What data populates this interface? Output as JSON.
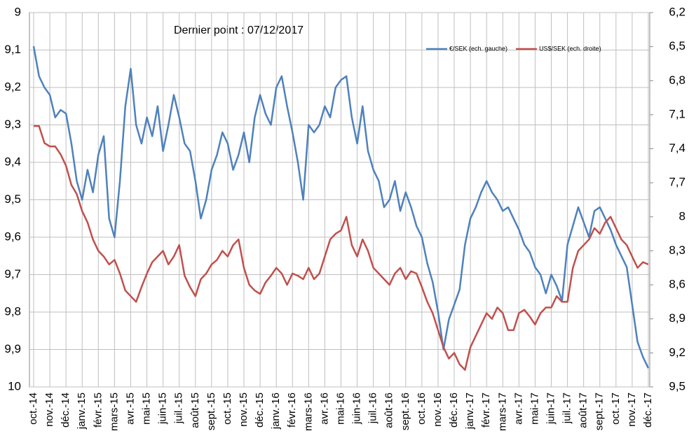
{
  "chart_data": {
    "type": "line",
    "annotation": "Dernier point : 07/12/2017",
    "categories": [
      "oct.-14",
      null,
      null,
      "nov.-14",
      null,
      null,
      "déc.-14",
      null,
      null,
      "janv.-15",
      null,
      null,
      "févr.-15",
      null,
      null,
      "mars-15",
      null,
      null,
      "avr.-15",
      null,
      null,
      "mai-15",
      null,
      null,
      "juin-15",
      null,
      null,
      "juil.-15",
      null,
      null,
      "août-15",
      null,
      null,
      "sept.-15",
      null,
      null,
      "oct.-15",
      null,
      null,
      "nov.-15",
      null,
      null,
      "déc.-15",
      null,
      null,
      "janv.-16",
      null,
      null,
      "févr.-16",
      null,
      null,
      "mars-16",
      null,
      null,
      "avr.-16",
      null,
      null,
      "mai-16",
      null,
      null,
      "juin-16",
      null,
      null,
      "juil.-16",
      null,
      null,
      "août-16",
      null,
      null,
      "sept.-16",
      null,
      null,
      "oct.-16",
      null,
      null,
      "nov.-16",
      null,
      null,
      "déc.-16",
      null,
      null,
      "janv.-17",
      null,
      null,
      "févr.-17",
      null,
      null,
      "mars-17",
      null,
      null,
      "avr.-17",
      null,
      null,
      "mai-17",
      null,
      null,
      "juin-17",
      null,
      null,
      "juil.-17",
      null,
      null,
      "août-17",
      null,
      null,
      "sept.-17",
      null,
      null,
      "oct.-17",
      null,
      null,
      "nov.-17",
      null,
      null,
      "déc.-17"
    ],
    "series": [
      {
        "name": "€/SEK (ech. gauche)",
        "color": "#4f81bd",
        "axis": "y",
        "values": [
          9.09,
          9.17,
          9.2,
          9.22,
          9.28,
          9.26,
          9.27,
          9.35,
          9.45,
          9.5,
          9.42,
          9.48,
          9.38,
          9.33,
          9.55,
          9.6,
          9.45,
          9.25,
          9.15,
          9.3,
          9.35,
          9.28,
          9.33,
          9.25,
          9.37,
          9.3,
          9.22,
          9.28,
          9.35,
          9.37,
          9.45,
          9.55,
          9.5,
          9.42,
          9.38,
          9.32,
          9.35,
          9.42,
          9.38,
          9.32,
          9.4,
          9.28,
          9.22,
          9.27,
          9.3,
          9.2,
          9.17,
          9.25,
          9.32,
          9.4,
          9.5,
          9.3,
          9.32,
          9.3,
          9.25,
          9.28,
          9.2,
          9.18,
          9.17,
          9.28,
          9.35,
          9.25,
          9.37,
          9.42,
          9.45,
          9.52,
          9.5,
          9.45,
          9.53,
          9.48,
          9.52,
          9.57,
          9.6,
          9.67,
          9.72,
          9.8,
          9.9,
          9.82,
          9.78,
          9.74,
          9.62,
          9.55,
          9.52,
          9.48,
          9.45,
          9.48,
          9.5,
          9.53,
          9.52,
          9.55,
          9.58,
          9.62,
          9.64,
          9.68,
          9.7,
          9.75,
          9.7,
          9.73,
          9.77,
          9.62,
          9.57,
          9.52,
          9.56,
          9.6,
          9.53,
          9.52,
          9.55,
          9.58,
          9.62,
          9.65,
          9.68,
          9.78,
          9.88,
          9.92,
          9.95
        ]
      },
      {
        "name": "US$/SEK (ech. droite)",
        "color": "#c0504d",
        "axis": "y2",
        "values": [
          7.2,
          7.2,
          7.35,
          7.38,
          7.38,
          7.45,
          7.55,
          7.72,
          7.8,
          7.95,
          8.05,
          8.2,
          8.3,
          8.35,
          8.42,
          8.38,
          8.5,
          8.65,
          8.7,
          8.75,
          8.62,
          8.5,
          8.4,
          8.35,
          8.3,
          8.42,
          8.35,
          8.25,
          8.52,
          8.62,
          8.7,
          8.55,
          8.5,
          8.42,
          8.38,
          8.3,
          8.35,
          8.25,
          8.2,
          8.45,
          8.6,
          8.65,
          8.68,
          8.58,
          8.52,
          8.45,
          8.5,
          8.6,
          8.5,
          8.52,
          8.55,
          8.45,
          8.55,
          8.5,
          8.35,
          8.2,
          8.15,
          8.12,
          8.0,
          8.25,
          8.35,
          8.2,
          8.3,
          8.45,
          8.5,
          8.55,
          8.6,
          8.5,
          8.45,
          8.55,
          8.48,
          8.5,
          8.62,
          8.75,
          8.85,
          9.0,
          9.15,
          9.25,
          9.2,
          9.3,
          9.35,
          9.15,
          9.05,
          8.95,
          8.85,
          8.9,
          8.8,
          8.85,
          9.0,
          9.0,
          8.85,
          8.82,
          8.88,
          8.95,
          8.85,
          8.8,
          8.8,
          8.7,
          8.75,
          8.75,
          8.45,
          8.3,
          8.25,
          8.2,
          8.1,
          8.15,
          8.05,
          8.0,
          8.1,
          8.2,
          8.25,
          8.35,
          8.45,
          8.4,
          8.42
        ]
      }
    ],
    "ylim": [
      9,
      10
    ],
    "yticks": [
      9,
      {
        "value": 9.1,
        "label": "9,1"
      },
      {
        "value": 9.2,
        "label": "9,2"
      },
      {
        "value": 9.3,
        "label": "9,3"
      },
      {
        "value": 9.4,
        "label": "9,4"
      },
      {
        "value": 9.5,
        "label": "9,5"
      },
      {
        "value": 9.6,
        "label": "9,6"
      },
      {
        "value": 9.7,
        "label": "9,7"
      },
      {
        "value": 9.8,
        "label": "9,8"
      },
      {
        "value": 9.9,
        "label": "9,9"
      },
      10
    ],
    "y2lim": [
      6.2,
      9.5
    ],
    "y2ticks": [
      {
        "value": 6.2,
        "label": "6,2"
      },
      {
        "value": 6.5,
        "label": "6,5"
      },
      {
        "value": 6.8,
        "label": "6,8"
      },
      {
        "value": 7.1,
        "label": "7,1"
      },
      {
        "value": 7.4,
        "label": "7,4"
      },
      {
        "value": 7.7,
        "label": "7,7"
      },
      8,
      {
        "value": 8.3,
        "label": "8,3"
      },
      {
        "value": 8.6,
        "label": "8,6"
      },
      {
        "value": 8.9,
        "label": "8,9"
      },
      {
        "value": 9.2,
        "label": "9,2"
      },
      {
        "value": 9.5,
        "label": "9,5"
      }
    ],
    "reversed_axes": true,
    "grid": true,
    "legend": "top-right"
  }
}
